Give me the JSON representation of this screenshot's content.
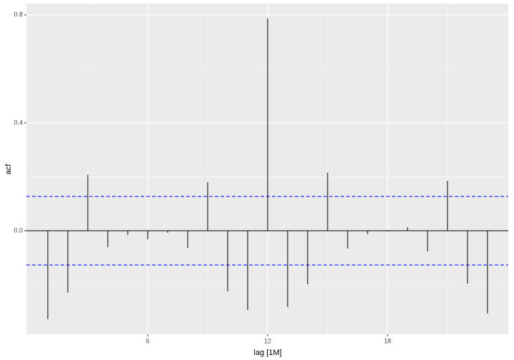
{
  "chart_data": {
    "type": "acf",
    "x_label": "lag [1M]",
    "y_label": "acf",
    "x": [
      1,
      2,
      3,
      4,
      5,
      6,
      7,
      8,
      9,
      10,
      11,
      12,
      13,
      14,
      15,
      16,
      17,
      18,
      19,
      20,
      21,
      22,
      23
    ],
    "values": [
      -0.328,
      -0.23,
      0.207,
      -0.061,
      -0.016,
      -0.032,
      -0.008,
      -0.064,
      0.18,
      -0.225,
      -0.294,
      0.787,
      -0.283,
      -0.199,
      0.215,
      -0.066,
      -0.013,
      -0.003,
      0.013,
      -0.077,
      0.185,
      -0.196,
      -0.307
    ],
    "color": "#000000",
    "ci_lines": [
      0.127,
      -0.127
    ],
    "ci_color": "#0000ff",
    "xlim": [
      -0.07,
      24.04
    ],
    "ylim": [
      -0.384,
      0.842
    ],
    "xticks": [
      6,
      12,
      18
    ],
    "yticks": [
      {
        "value": 0,
        "label": "0.0"
      },
      {
        "value": 0.4,
        "label": "0.4"
      },
      {
        "value": 0.8,
        "label": "0.8"
      }
    ],
    "grid": true
  }
}
